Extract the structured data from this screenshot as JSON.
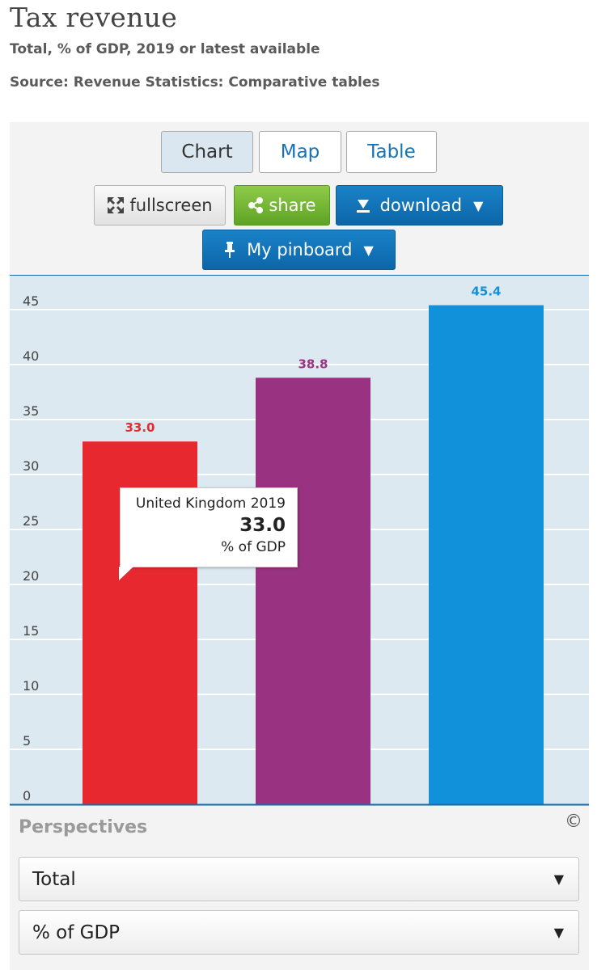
{
  "header": {
    "title": "Tax revenue",
    "subtitle": "Total, % of GDP, 2019 or latest available",
    "source": "Source: Revenue Statistics: Comparative tables"
  },
  "tabs": [
    {
      "label": "Chart",
      "active": true
    },
    {
      "label": "Map",
      "active": false
    },
    {
      "label": "Table",
      "active": false
    }
  ],
  "toolbar": {
    "fullscreen_label": "fullscreen",
    "share_label": "share",
    "download_label": "download",
    "pinboard_label": "My pinboard"
  },
  "tooltip": {
    "name": "United Kingdom 2019",
    "value": "33.0",
    "unit": "% of GDP"
  },
  "perspectives": {
    "label": "Perspectives",
    "selects": [
      {
        "value": "Total"
      },
      {
        "value": "% of GDP"
      }
    ]
  },
  "colors": {
    "plot_background": "#dde9f1",
    "gridline": "#ffffff",
    "axis": "#1a6aa6",
    "share_green": "#6fb22f",
    "button_blue": "#1173b9"
  },
  "icons": {
    "fullscreen": "expand-arrows-icon",
    "share": "share-icon",
    "download": "download-icon",
    "pinboard": "pin-icon",
    "copyright": "copyright-icon"
  },
  "chart_data": {
    "type": "bar",
    "categories": [
      "",
      "",
      ""
    ],
    "values": [
      33.0,
      38.8,
      45.4
    ],
    "data_labels": [
      "33.0",
      "38.8",
      "45.4"
    ],
    "colors": [
      "#e8282f",
      "#993381",
      "#1191da"
    ],
    "ylim": [
      0,
      45
    ],
    "yticks": [
      0,
      5,
      10,
      15,
      20,
      25,
      30,
      35,
      40,
      45
    ],
    "grid": true,
    "legend": "none"
  }
}
